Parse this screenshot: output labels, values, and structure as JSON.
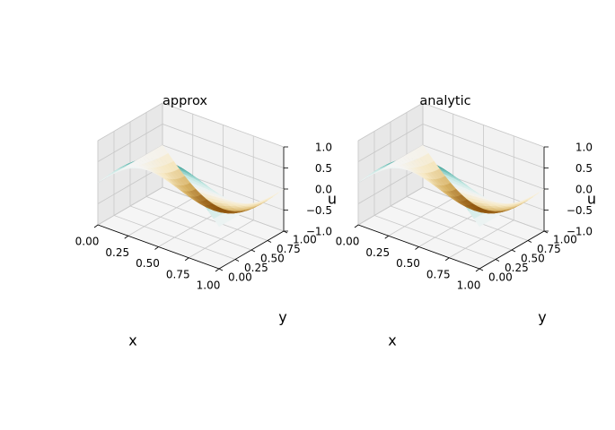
{
  "figure": {
    "background": "#ffffff"
  },
  "chart_data": [
    {
      "type": "surface3d",
      "title": "approx",
      "xlabel": "x",
      "ylabel": "y",
      "zlabel": "u",
      "xlim": [
        0,
        1
      ],
      "ylim": [
        0,
        1
      ],
      "zlim": [
        -1,
        1
      ],
      "xticks": [
        "0.00",
        "0.25",
        "0.50",
        "0.75",
        "1.00"
      ],
      "yticks": [
        "0.00",
        "0.25",
        "0.50",
        "0.75",
        "1.00"
      ],
      "zticks": [
        "−1.0",
        "−0.5",
        "0.0",
        "0.5",
        "1.0"
      ],
      "grid": true,
      "colormap": [
        "#8c510a",
        "#d8b365",
        "#f6e8c3",
        "#f5f5f5",
        "#c7eae5",
        "#5ab4ac",
        "#01665e"
      ],
      "function": "u(x,y) = sin(pi*x)*cos(pi*y)"
    },
    {
      "type": "surface3d",
      "title": "analytic",
      "xlabel": "x",
      "ylabel": "y",
      "zlabel": "u",
      "xlim": [
        0,
        1
      ],
      "ylim": [
        0,
        1
      ],
      "zlim": [
        -1,
        1
      ],
      "xticks": [
        "0.00",
        "0.25",
        "0.50",
        "0.75",
        "1.00"
      ],
      "yticks": [
        "0.00",
        "0.25",
        "0.50",
        "0.75",
        "1.00"
      ],
      "zticks": [
        "−1.0",
        "−0.5",
        "0.0",
        "0.5",
        "1.0"
      ],
      "grid": true,
      "colormap": [
        "#8c510a",
        "#d8b365",
        "#f6e8c3",
        "#f5f5f5",
        "#c7eae5",
        "#5ab4ac",
        "#01665e"
      ],
      "function": "u(x,y) = sin(pi*x)*cos(pi*y)"
    }
  ]
}
